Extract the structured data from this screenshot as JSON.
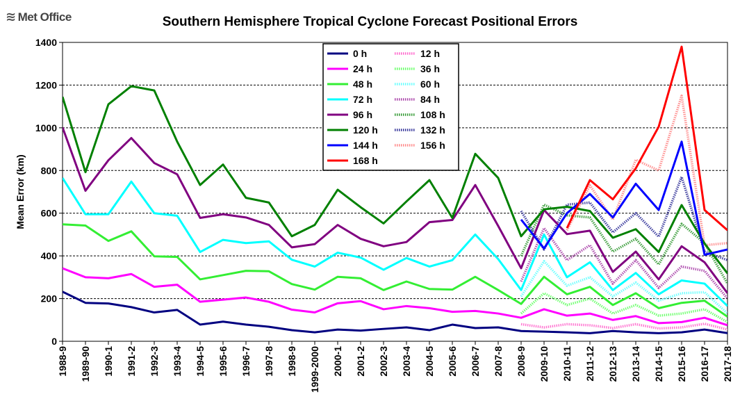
{
  "logo": {
    "text": "Met Office",
    "icon": "met-office-logo-icon"
  },
  "chart_data": {
    "type": "line",
    "title": "Southern Hemisphere Tropical Cyclone Forecast Positional Errors",
    "xlabel": "",
    "ylabel": "Mean Error (km)",
    "ylim": [
      0,
      1400
    ],
    "yticks": [
      0,
      200,
      400,
      600,
      800,
      1000,
      1200,
      1400
    ],
    "grid": "horizontal",
    "legend_position": "top-center",
    "categories": [
      "1988-9",
      "1989-90",
      "1990-1",
      "1991-2",
      "1992-3",
      "1993-4",
      "1994-5",
      "1995-6",
      "1996-7",
      "1997-8",
      "1998-9",
      "1999-2000",
      "2000-1",
      "2001-2",
      "2002-3",
      "2003-4",
      "2004-5",
      "2005-6",
      "2006-7",
      "2007-8",
      "2008-9",
      "2009-10",
      "2010-11",
      "2011-12",
      "2012-13",
      "2013-14",
      "2014-15",
      "2015-16",
      "2016-17",
      "2017-18"
    ],
    "series": [
      {
        "name": "0 h",
        "color": "#000080",
        "style": "solid",
        "values": [
          232,
          180,
          177,
          160,
          135,
          147,
          78,
          92,
          78,
          68,
          52,
          42,
          55,
          50,
          58,
          65,
          52,
          78,
          62,
          65,
          48,
          45,
          42,
          38,
          48,
          42,
          38,
          42,
          55,
          38
        ]
      },
      {
        "name": "12 h",
        "color": "#ff66cc",
        "style": "hatched",
        "values": [
          null,
          null,
          null,
          null,
          null,
          null,
          null,
          null,
          null,
          null,
          null,
          null,
          null,
          null,
          null,
          null,
          null,
          null,
          null,
          null,
          80,
          65,
          80,
          75,
          62,
          80,
          60,
          65,
          82,
          55
        ]
      },
      {
        "name": "24 h",
        "color": "#ff00ff",
        "style": "solid",
        "values": [
          342,
          300,
          295,
          315,
          255,
          265,
          185,
          195,
          205,
          185,
          148,
          135,
          178,
          188,
          150,
          165,
          155,
          138,
          142,
          130,
          110,
          150,
          120,
          130,
          100,
          118,
          85,
          90,
          110,
          75
        ]
      },
      {
        "name": "36 h",
        "color": "#66ff66",
        "style": "hatched",
        "values": [
          null,
          null,
          null,
          null,
          null,
          null,
          null,
          null,
          null,
          null,
          null,
          null,
          null,
          null,
          null,
          null,
          null,
          null,
          null,
          null,
          130,
          225,
          170,
          200,
          130,
          170,
          120,
          130,
          150,
          90
        ]
      },
      {
        "name": "48 h",
        "color": "#33ee33",
        "style": "solid",
        "values": [
          548,
          542,
          470,
          515,
          398,
          395,
          290,
          310,
          330,
          328,
          268,
          242,
          302,
          295,
          240,
          280,
          245,
          242,
          302,
          240,
          175,
          302,
          220,
          255,
          170,
          225,
          155,
          180,
          190,
          115
        ]
      },
      {
        "name": "60 h",
        "color": "#66ffff",
        "style": "hatched",
        "values": [
          null,
          null,
          null,
          null,
          null,
          null,
          null,
          null,
          null,
          null,
          null,
          null,
          null,
          null,
          null,
          null,
          null,
          null,
          null,
          null,
          210,
          375,
          260,
          300,
          210,
          275,
          190,
          225,
          230,
          130
        ]
      },
      {
        "name": "72 h",
        "color": "#00ffff",
        "style": "solid",
        "values": [
          765,
          595,
          595,
          748,
          600,
          588,
          418,
          475,
          460,
          468,
          382,
          350,
          415,
          392,
          335,
          390,
          350,
          380,
          500,
          385,
          240,
          500,
          300,
          370,
          240,
          320,
          220,
          285,
          270,
          165
        ]
      },
      {
        "name": "84 h",
        "color": "#aa44aa",
        "style": "hatched",
        "values": [
          null,
          null,
          null,
          null,
          null,
          null,
          null,
          null,
          null,
          null,
          null,
          null,
          null,
          null,
          null,
          null,
          null,
          null,
          null,
          null,
          280,
          530,
          380,
          450,
          270,
          380,
          250,
          350,
          330,
          200
        ]
      },
      {
        "name": "96 h",
        "color": "#800080",
        "style": "solid",
        "values": [
          1002,
          705,
          848,
          952,
          835,
          782,
          578,
          595,
          580,
          545,
          440,
          455,
          545,
          480,
          445,
          465,
          558,
          568,
          732,
          540,
          342,
          615,
          502,
          518,
          325,
          420,
          290,
          445,
          370,
          225
        ]
      },
      {
        "name": "108 h",
        "color": "#339933",
        "style": "hatched",
        "values": [
          null,
          null,
          null,
          null,
          null,
          null,
          null,
          null,
          null,
          null,
          null,
          null,
          null,
          null,
          null,
          null,
          null,
          null,
          null,
          null,
          400,
          640,
          590,
          580,
          420,
          480,
          360,
          550,
          460,
          270
        ]
      },
      {
        "name": "120 h",
        "color": "#008000",
        "style": "solid",
        "values": [
          1145,
          792,
          1110,
          1195,
          1175,
          935,
          732,
          828,
          672,
          650,
          492,
          545,
          710,
          628,
          552,
          655,
          755,
          578,
          878,
          765,
          492,
          618,
          630,
          610,
          485,
          525,
          418,
          638,
          458,
          318
        ]
      },
      {
        "name": "132 h",
        "color": "#333399",
        "style": "hatched",
        "values": [
          null,
          null,
          null,
          null,
          null,
          null,
          null,
          null,
          null,
          null,
          null,
          null,
          null,
          null,
          null,
          null,
          null,
          null,
          null,
          null,
          610,
          430,
          640,
          650,
          510,
          600,
          490,
          770,
          420,
          380
        ]
      },
      {
        "name": "144 h",
        "color": "#0000ff",
        "style": "solid",
        "values": [
          null,
          null,
          null,
          null,
          null,
          null,
          null,
          null,
          null,
          null,
          null,
          null,
          null,
          null,
          null,
          null,
          null,
          null,
          null,
          null,
          570,
          435,
          600,
          690,
          580,
          738,
          615,
          935,
          405,
          430
        ]
      },
      {
        "name": "156 h",
        "color": "#ff8888",
        "style": "hatched",
        "values": [
          null,
          null,
          null,
          null,
          null,
          null,
          null,
          null,
          null,
          null,
          null,
          null,
          null,
          null,
          null,
          null,
          null,
          null,
          null,
          null,
          null,
          null,
          520,
          730,
          570,
          850,
          800,
          1150,
          450,
          460
        ]
      },
      {
        "name": "168 h",
        "color": "#ff0000",
        "style": "solid",
        "values": [
          null,
          null,
          null,
          null,
          null,
          null,
          null,
          null,
          null,
          null,
          null,
          null,
          null,
          null,
          null,
          null,
          null,
          null,
          null,
          null,
          null,
          null,
          530,
          755,
          665,
          810,
          1005,
          1380,
          615,
          520
        ]
      }
    ]
  }
}
